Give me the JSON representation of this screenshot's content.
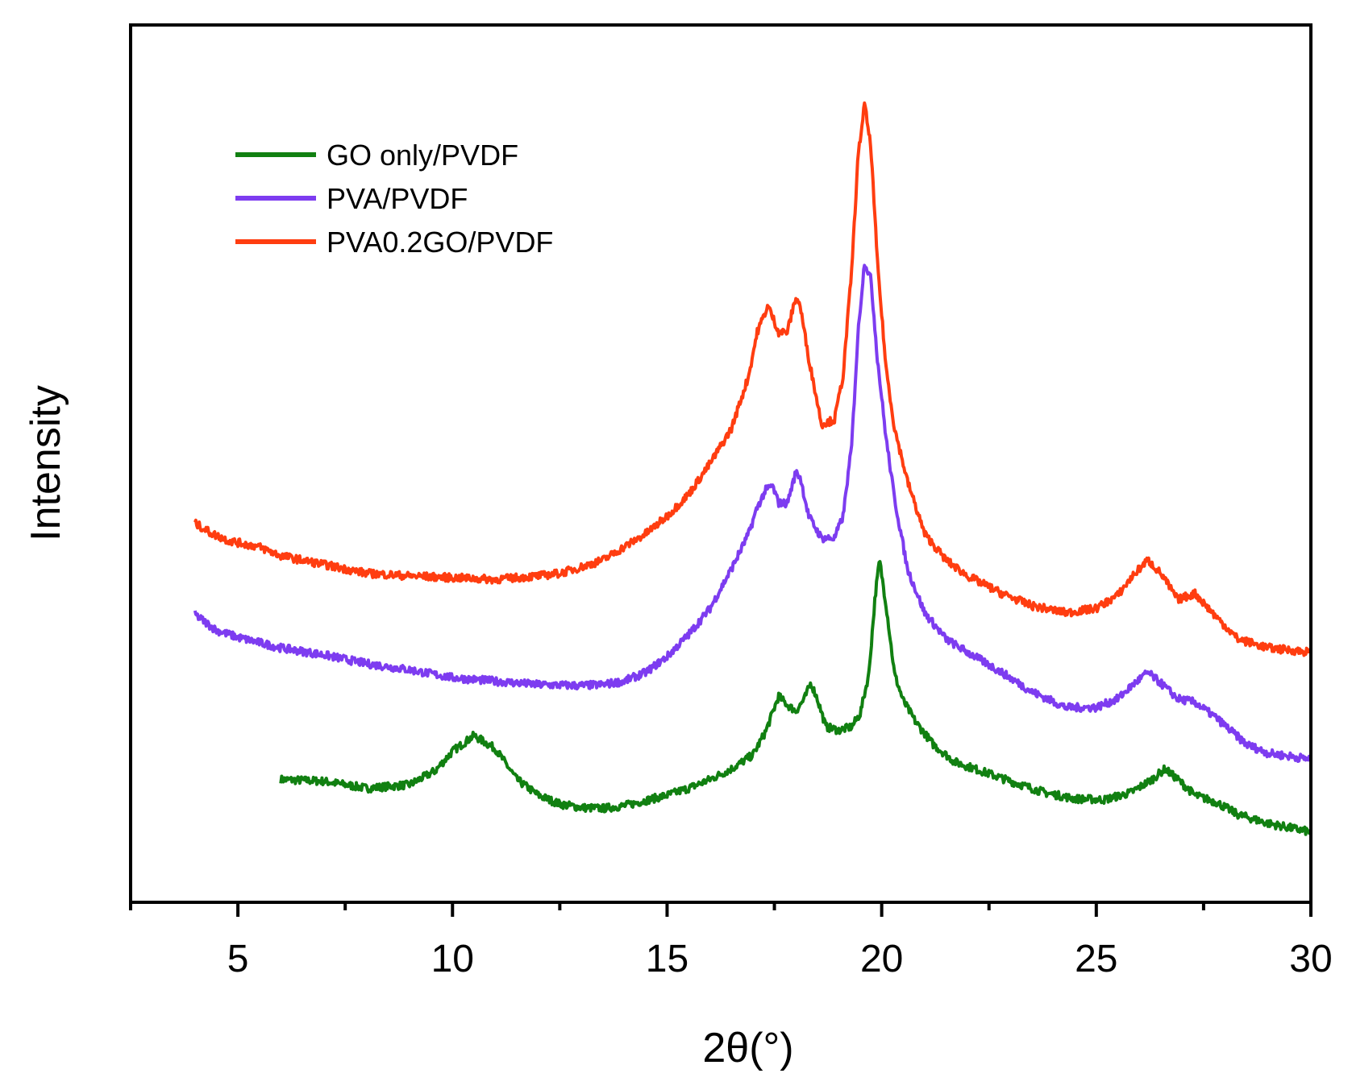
{
  "chart_data": {
    "type": "line",
    "title": "",
    "xlabel": "2θ(°)",
    "ylabel": "Intensity",
    "xlim": [
      2.5,
      30
    ],
    "ylim": [
      0,
      1000
    ],
    "x_major_ticks": [
      5,
      10,
      15,
      20,
      25,
      30
    ],
    "x_tick_labels": [
      "5",
      "10",
      "15",
      "20",
      "25",
      "30"
    ],
    "x_minor_ticks": [
      2.5,
      7.5,
      12.5,
      17.5,
      22.5,
      27.5
    ],
    "y_ticks_shown": false,
    "grid": false,
    "legend_position": "top-left",
    "legend": [
      "GO only/PVDF",
      "PVA/PVDF",
      "PVA0.2GO/PVDF"
    ],
    "series": [
      {
        "name": "GO only/PVDF",
        "color": "#118011",
        "points": [
          [
            6.0,
            140
          ],
          [
            7.0,
            138
          ],
          [
            8.0,
            130
          ],
          [
            9.0,
            134
          ],
          [
            9.6,
            150
          ],
          [
            10.0,
            172
          ],
          [
            10.5,
            190
          ],
          [
            11.0,
            175
          ],
          [
            11.5,
            140
          ],
          [
            12.0,
            122
          ],
          [
            12.5,
            112
          ],
          [
            13.0,
            108
          ],
          [
            13.5,
            107
          ],
          [
            14.0,
            110
          ],
          [
            14.5,
            116
          ],
          [
            15.0,
            122
          ],
          [
            15.5,
            130
          ],
          [
            16.0,
            140
          ],
          [
            16.5,
            152
          ],
          [
            17.0,
            168
          ],
          [
            17.3,
            195
          ],
          [
            17.6,
            235
          ],
          [
            17.8,
            225
          ],
          [
            18.0,
            218
          ],
          [
            18.2,
            232
          ],
          [
            18.35,
            250
          ],
          [
            18.5,
            232
          ],
          [
            18.7,
            200
          ],
          [
            19.0,
            196
          ],
          [
            19.3,
            200
          ],
          [
            19.5,
            215
          ],
          [
            19.7,
            260
          ],
          [
            19.85,
            350
          ],
          [
            19.95,
            390
          ],
          [
            20.1,
            340
          ],
          [
            20.3,
            260
          ],
          [
            20.5,
            230
          ],
          [
            20.8,
            205
          ],
          [
            21.2,
            180
          ],
          [
            21.7,
            160
          ],
          [
            22.3,
            150
          ],
          [
            23.0,
            138
          ],
          [
            23.8,
            125
          ],
          [
            24.5,
            118
          ],
          [
            25.2,
            117
          ],
          [
            25.8,
            125
          ],
          [
            26.3,
            140
          ],
          [
            26.6,
            152
          ],
          [
            26.9,
            140
          ],
          [
            27.3,
            122
          ],
          [
            27.8,
            114
          ],
          [
            28.3,
            100
          ],
          [
            29.0,
            90
          ],
          [
            30.0,
            80
          ]
        ]
      },
      {
        "name": "PVA/PVDF",
        "color": "#7d3cf0",
        "points": [
          [
            4.0,
            328
          ],
          [
            4.5,
            310
          ],
          [
            5.0,
            302
          ],
          [
            5.5,
            296
          ],
          [
            6.0,
            290
          ],
          [
            7.0,
            282
          ],
          [
            8.0,
            272
          ],
          [
            9.0,
            265
          ],
          [
            10.0,
            256
          ],
          [
            11.0,
            252
          ],
          [
            12.0,
            248
          ],
          [
            13.0,
            247
          ],
          [
            13.5,
            248
          ],
          [
            14.0,
            252
          ],
          [
            14.5,
            262
          ],
          [
            15.0,
            280
          ],
          [
            15.5,
            305
          ],
          [
            16.0,
            335
          ],
          [
            16.5,
            380
          ],
          [
            16.9,
            420
          ],
          [
            17.1,
            450
          ],
          [
            17.3,
            470
          ],
          [
            17.45,
            475
          ],
          [
            17.6,
            455
          ],
          [
            17.8,
            455
          ],
          [
            18.0,
            490
          ],
          [
            18.1,
            485
          ],
          [
            18.3,
            440
          ],
          [
            18.6,
            415
          ],
          [
            18.9,
            415
          ],
          [
            19.1,
            440
          ],
          [
            19.3,
            520
          ],
          [
            19.45,
            650
          ],
          [
            19.6,
            730
          ],
          [
            19.75,
            710
          ],
          [
            19.9,
            620
          ],
          [
            20.1,
            530
          ],
          [
            20.3,
            460
          ],
          [
            20.6,
            380
          ],
          [
            21.0,
            330
          ],
          [
            21.5,
            300
          ],
          [
            22.0,
            285
          ],
          [
            22.8,
            262
          ],
          [
            23.5,
            240
          ],
          [
            24.3,
            222
          ],
          [
            25.0,
            222
          ],
          [
            25.5,
            232
          ],
          [
            25.9,
            250
          ],
          [
            26.2,
            262
          ],
          [
            26.5,
            250
          ],
          [
            26.9,
            232
          ],
          [
            27.3,
            228
          ],
          [
            27.8,
            210
          ],
          [
            28.5,
            180
          ],
          [
            29.0,
            170
          ],
          [
            30.0,
            163
          ]
        ]
      },
      {
        "name": "PVA0.2GO/PVDF",
        "color": "#ff3d10",
        "points": [
          [
            4.0,
            432
          ],
          [
            4.4,
            420
          ],
          [
            4.8,
            412
          ],
          [
            5.5,
            405
          ],
          [
            6.0,
            395
          ],
          [
            7.0,
            385
          ],
          [
            8.0,
            375
          ],
          [
            9.0,
            372
          ],
          [
            10.0,
            370
          ],
          [
            11.0,
            368
          ],
          [
            12.0,
            372
          ],
          [
            12.5,
            375
          ],
          [
            13.0,
            382
          ],
          [
            13.5,
            390
          ],
          [
            14.0,
            405
          ],
          [
            14.5,
            420
          ],
          [
            15.0,
            440
          ],
          [
            15.5,
            465
          ],
          [
            16.0,
            500
          ],
          [
            16.5,
            540
          ],
          [
            16.9,
            600
          ],
          [
            17.1,
            650
          ],
          [
            17.35,
            680
          ],
          [
            17.6,
            650
          ],
          [
            17.8,
            650
          ],
          [
            18.0,
            690
          ],
          [
            18.1,
            680
          ],
          [
            18.3,
            620
          ],
          [
            18.6,
            545
          ],
          [
            18.9,
            550
          ],
          [
            19.1,
            600
          ],
          [
            19.3,
            720
          ],
          [
            19.45,
            850
          ],
          [
            19.6,
            910
          ],
          [
            19.75,
            860
          ],
          [
            19.9,
            730
          ],
          [
            20.1,
            610
          ],
          [
            20.3,
            540
          ],
          [
            20.6,
            480
          ],
          [
            21.0,
            420
          ],
          [
            21.5,
            390
          ],
          [
            22.0,
            372
          ],
          [
            22.8,
            352
          ],
          [
            23.5,
            338
          ],
          [
            24.3,
            330
          ],
          [
            25.0,
            335
          ],
          [
            25.5,
            350
          ],
          [
            25.9,
            375
          ],
          [
            26.2,
            390
          ],
          [
            26.5,
            375
          ],
          [
            26.9,
            345
          ],
          [
            27.3,
            352
          ],
          [
            27.8,
            325
          ],
          [
            28.3,
            300
          ],
          [
            29.0,
            290
          ],
          [
            30.0,
            285
          ]
        ]
      }
    ]
  }
}
